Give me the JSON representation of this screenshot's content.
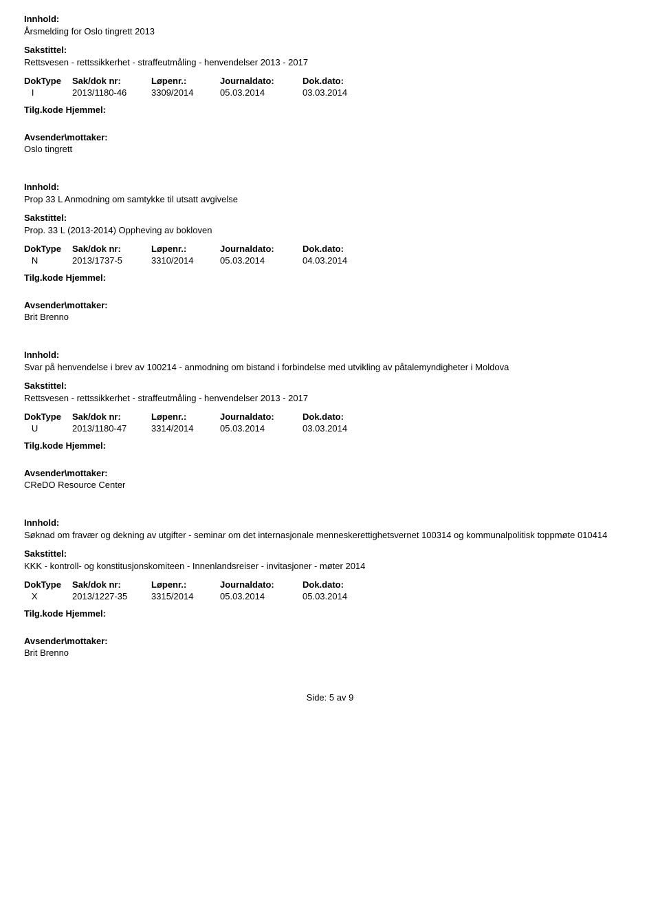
{
  "labels": {
    "innhold": "Innhold:",
    "sakstittel": "Sakstittel:",
    "doktype": "DokType",
    "saknr": "Sak/dok nr:",
    "lopenr": "Løpenr.:",
    "journaldato": "Journaldato:",
    "dokdato": "Dok.dato:",
    "tilgkode": "Tilg.kode",
    "hjemmel": "Hjemmel:",
    "avsender": "Avsender\\mottaker:"
  },
  "records": [
    {
      "innhold": "Årsmelding for Oslo tingrett 2013",
      "sakstittel": "Rettsvesen - rettssikkerhet - straffeutmåling - henvendelser 2013 - 2017",
      "doktype": "I",
      "saknr": "2013/1180-46",
      "lopenr": "3309/2014",
      "journaldato": "05.03.2014",
      "dokdato": "03.03.2014",
      "avsender": "Oslo tingrett"
    },
    {
      "innhold": "Prop 33 L Anmodning om samtykke til utsatt avgivelse",
      "sakstittel": "Prop. 33 L (2013-2014) Oppheving av bokloven",
      "doktype": "N",
      "saknr": "2013/1737-5",
      "lopenr": "3310/2014",
      "journaldato": "05.03.2014",
      "dokdato": "04.03.2014",
      "avsender": "Brit Brenno"
    },
    {
      "innhold": "Svar på henvendelse i brev av 100214 - anmodning om bistand i forbindelse med utvikling av påtalemyndigheter i Moldova",
      "sakstittel": "Rettsvesen - rettssikkerhet - straffeutmåling - henvendelser 2013 - 2017",
      "doktype": "U",
      "saknr": "2013/1180-47",
      "lopenr": "3314/2014",
      "journaldato": "05.03.2014",
      "dokdato": "03.03.2014",
      "avsender": "CReDO Resource Center"
    },
    {
      "innhold": "Søknad om fravær og dekning av utgifter - seminar om det internasjonale menneskerettighetsvernet 100314 og kommunalpolitisk toppmøte 010414",
      "sakstittel": "KKK - kontroll- og konstitusjonskomiteen - Innenlandsreiser - invitasjoner - møter 2014",
      "doktype": "X",
      "saknr": "2013/1227-35",
      "lopenr": "3315/2014",
      "journaldato": "05.03.2014",
      "dokdato": "05.03.2014",
      "avsender": "Brit Brenno"
    }
  ],
  "footer": {
    "side_label": "Side:",
    "current": "5",
    "av": "av",
    "total": "9"
  }
}
